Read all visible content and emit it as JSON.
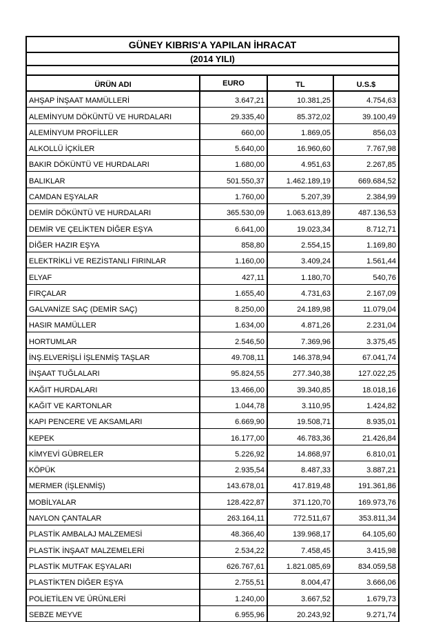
{
  "document": {
    "title": "GÜNEY KIBRIS'A YAPILAN İHRACAT",
    "subtitle": "(2014 YILI)"
  },
  "colors": {
    "background": "#ffffff",
    "border": "#000000",
    "text": "#000000"
  },
  "table": {
    "columns": [
      "ÜRÜN ADI",
      "EURO",
      "TL",
      "U.S.$"
    ],
    "rows": [
      {
        "urun": "AHŞAP İNŞAAT MAMÜLLERİ",
        "euro": "3.647,21",
        "tl": "10.381,25",
        "usd": "4.754,63"
      },
      {
        "urun": "ALEMİNYUM DÖKÜNTÜ VE HURDALARI",
        "euro": "29.335,40",
        "tl": "85.372,02",
        "usd": "39.100,49"
      },
      {
        "urun": "ALEMİNYUM PROFİLLER",
        "euro": "660,00",
        "tl": "1.869,05",
        "usd": "856,03"
      },
      {
        "urun": "ALKOLLÜ İÇKİLER",
        "euro": "5.640,00",
        "tl": "16.960,60",
        "usd": "7.767,98"
      },
      {
        "urun": "BAKIR DÖKÜNTÜ VE HURDALARI",
        "euro": "1.680,00",
        "tl": "4.951,63",
        "usd": "2.267,85"
      },
      {
        "urun": "BALIKLAR",
        "euro": "501.550,37",
        "tl": "1.462.189,19",
        "usd": "669.684,52"
      },
      {
        "urun": "CAMDAN EŞYALAR",
        "euro": "1.760,00",
        "tl": "5.207,39",
        "usd": "2.384,99"
      },
      {
        "urun": "DEMİR DÖKÜNTÜ VE HURDALARI",
        "euro": "365.530,09",
        "tl": "1.063.613,89",
        "usd": "487.136,53"
      },
      {
        "urun": "DEMİR VE ÇELİKTEN DİĞER EŞYA",
        "euro": "6.641,00",
        "tl": "19.023,34",
        "usd": "8.712,71"
      },
      {
        "urun": "DİĞER HAZIR EŞYA",
        "euro": "858,80",
        "tl": "2.554,15",
        "usd": "1.169,80"
      },
      {
        "urun": "ELEKTRİKLİ VE REZİSTANLI FIRINLAR",
        "euro": "1.160,00",
        "tl": "3.409,24",
        "usd": "1.561,44"
      },
      {
        "urun": "ELYAF",
        "euro": "427,11",
        "tl": "1.180,70",
        "usd": "540,76"
      },
      {
        "urun": "FIRÇALAR",
        "euro": "1.655,40",
        "tl": "4.731,63",
        "usd": "2.167,09"
      },
      {
        "urun": "GALVANİZE SAÇ  (DEMİR SAÇ)",
        "euro": "8.250,00",
        "tl": "24.189,98",
        "usd": "11.079,04"
      },
      {
        "urun": "HASIR MAMÜLLER",
        "euro": "1.634,00",
        "tl": "4.871,26",
        "usd": "2.231,04"
      },
      {
        "urun": "HORTUMLAR",
        "euro": "2.546,50",
        "tl": "7.369,96",
        "usd": "3.375,45"
      },
      {
        "urun": "İNŞ.ELVERİŞLİ İŞLENMİŞ TAŞLAR",
        "euro": "49.708,11",
        "tl": "146.378,94",
        "usd": "67.041,74"
      },
      {
        "urun": "İNŞAAT TUĞLALARI",
        "euro": "95.824,55",
        "tl": "277.340,38",
        "usd": "127.022,25"
      },
      {
        "urun": "KAĞIT HURDALARI",
        "euro": "13.466,00",
        "tl": "39.340,85",
        "usd": "18.018,16"
      },
      {
        "urun": "KAĞIT VE KARTONLAR",
        "euro": "1.044,78",
        "tl": "3.110,95",
        "usd": "1.424,82"
      },
      {
        "urun": "KAPI PENCERE VE AKSAMLARI",
        "euro": "6.669,90",
        "tl": "19.508,71",
        "usd": "8.935,01"
      },
      {
        "urun": "KEPEK",
        "euro": "16.177,00",
        "tl": "46.783,36",
        "usd": "21.426,84"
      },
      {
        "urun": "KİMYEVİ GÜBRELER",
        "euro": "5.226,92",
        "tl": "14.868,97",
        "usd": "6.810,01"
      },
      {
        "urun": "KÖPÜK",
        "euro": "2.935,54",
        "tl": "8.487,33",
        "usd": "3.887,21"
      },
      {
        "urun": "MERMER (İŞLENMİŞ)",
        "euro": "143.678,01",
        "tl": "417.819,48",
        "usd": "191.361,86"
      },
      {
        "urun": "MOBİLYALAR",
        "euro": "128.422,87",
        "tl": "371.120,70",
        "usd": "169.973,76"
      },
      {
        "urun": "NAYLON ÇANTALAR",
        "euro": "263.164,11",
        "tl": "772.511,67",
        "usd": "353.811,34"
      },
      {
        "urun": "PLASTİK AMBALAJ MALZEMESİ",
        "euro": "48.366,40",
        "tl": "139.968,17",
        "usd": "64.105,60"
      },
      {
        "urun": "PLASTİK İNŞAAT MALZEMELERİ",
        "euro": "2.534,22",
        "tl": "7.458,45",
        "usd": "3.415,98"
      },
      {
        "urun": "PLASTİK MUTFAK EŞYALARI",
        "euro": "626.767,61",
        "tl": "1.821.085,69",
        "usd": "834.059,58"
      },
      {
        "urun": "PLASTİKTEN DİĞER EŞYA",
        "euro": "2.755,51",
        "tl": "8.004,47",
        "usd": "3.666,06"
      },
      {
        "urun": "POLİETİLEN VE ÜRÜNLERİ",
        "euro": "1.240,00",
        "tl": "3.667,52",
        "usd": "1.679,73"
      },
      {
        "urun": "SEBZE MEYVE",
        "euro": "6.955,96",
        "tl": "20.243,92",
        "usd": "9.271,74"
      }
    ]
  }
}
